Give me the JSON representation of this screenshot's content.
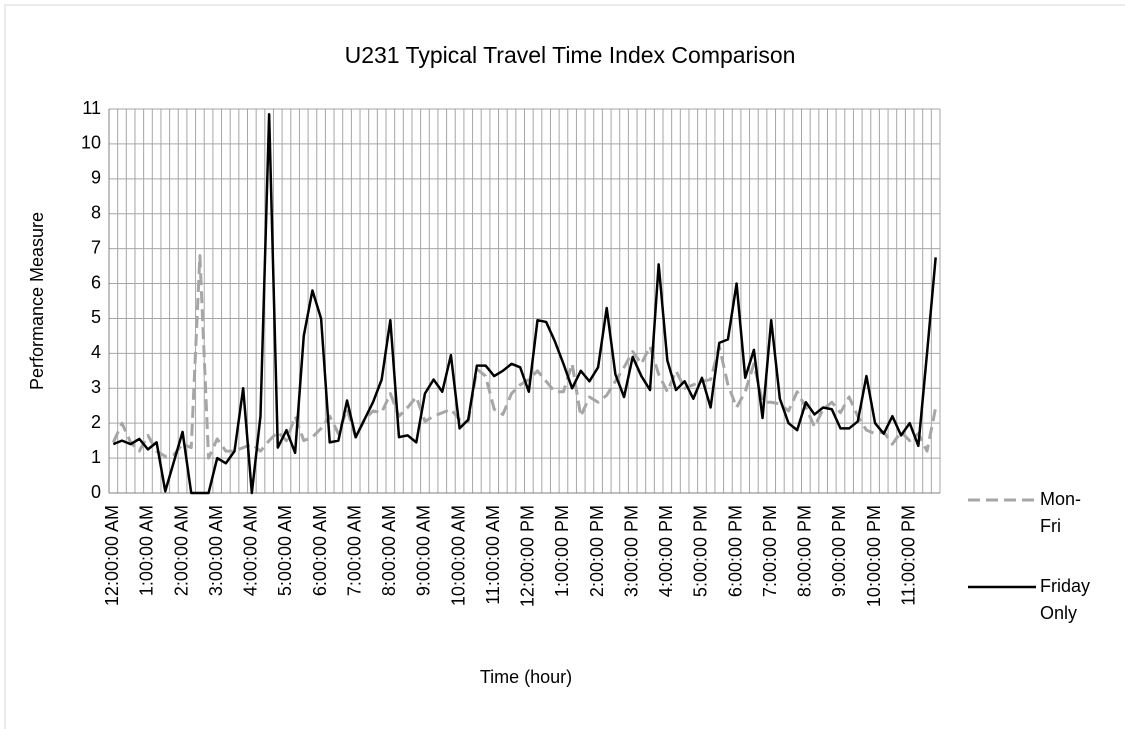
{
  "chart_data": {
    "type": "line",
    "title": "U231 Typical Travel Time Index Comparison",
    "x_label": "Time (hour)",
    "y_label": "Performance Measure",
    "categories": [
      "12:00:00 AM",
      null,
      null,
      null,
      "1:00:00 AM",
      null,
      null,
      null,
      "2:00:00 AM",
      null,
      null,
      null,
      "3:00:00 AM",
      null,
      null,
      null,
      "4:00:00 AM",
      null,
      null,
      null,
      "5:00:00 AM",
      null,
      null,
      null,
      "6:00:00 AM",
      null,
      null,
      null,
      "7:00:00 AM",
      null,
      null,
      null,
      "8:00:00 AM",
      null,
      null,
      null,
      "9:00:00 AM",
      null,
      null,
      null,
      "10:00:00 AM",
      null,
      null,
      null,
      "11:00:00 AM",
      null,
      null,
      null,
      "12:00:00 PM",
      null,
      null,
      null,
      "1:00:00 PM",
      null,
      null,
      null,
      "2:00:00 PM",
      null,
      null,
      null,
      "3:00:00 PM",
      null,
      null,
      null,
      "4:00:00 PM",
      null,
      null,
      null,
      "5:00:00 PM",
      null,
      null,
      null,
      "6:00:00 PM",
      null,
      null,
      null,
      "7:00:00 PM",
      null,
      null,
      null,
      "8:00:00 PM",
      null,
      null,
      null,
      "9:00:00 PM",
      null,
      null,
      null,
      "10:00:00 PM",
      null,
      null,
      null,
      "11:00:00 PM",
      null,
      null,
      null
    ],
    "series": [
      {
        "name": "Mon-Fri",
        "color": "#a6a6a6",
        "dash": true,
        "values": [
          1.45,
          2.0,
          1.45,
          1.2,
          1.65,
          1.2,
          1.05,
          1.1,
          1.4,
          1.3,
          6.8,
          1.0,
          1.55,
          1.2,
          1.2,
          1.3,
          1.4,
          1.2,
          1.5,
          1.75,
          1.5,
          2.2,
          1.5,
          1.6,
          1.85,
          2.2,
          1.7,
          2.4,
          1.6,
          2.1,
          2.35,
          2.3,
          2.85,
          2.2,
          2.45,
          2.75,
          2.05,
          2.2,
          2.3,
          2.4,
          2.1,
          2.05,
          3.55,
          3.35,
          2.4,
          2.25,
          2.85,
          3.1,
          3.25,
          3.5,
          3.2,
          2.9,
          2.9,
          3.7,
          2.2,
          2.75,
          2.6,
          2.8,
          3.2,
          3.6,
          4.05,
          3.7,
          4.2,
          3.4,
          2.9,
          3.5,
          3.0,
          3.1,
          3.2,
          3.25,
          4.2,
          3.1,
          2.45,
          2.9,
          3.7,
          2.6,
          2.6,
          2.55,
          2.35,
          2.9,
          2.45,
          1.9,
          2.4,
          2.6,
          2.3,
          2.75,
          2.2,
          1.8,
          1.7,
          1.75,
          1.4,
          1.75,
          1.5,
          1.7,
          1.2,
          2.45
        ]
      },
      {
        "name": "Friday Only",
        "color": "#000000",
        "dash": false,
        "values": [
          1.4,
          1.5,
          1.4,
          1.55,
          1.25,
          1.45,
          0.05,
          0.9,
          1.75,
          0,
          0,
          0,
          1.0,
          0.85,
          1.2,
          3.0,
          0,
          2.2,
          10.85,
          1.3,
          1.8,
          1.15,
          4.5,
          5.8,
          5.0,
          1.45,
          1.5,
          2.65,
          1.6,
          2.1,
          2.6,
          3.25,
          4.95,
          1.6,
          1.65,
          1.45,
          2.85,
          3.25,
          2.9,
          3.95,
          1.85,
          2.1,
          3.65,
          3.65,
          3.35,
          3.5,
          3.7,
          3.6,
          2.9,
          4.95,
          4.9,
          4.35,
          3.7,
          3.0,
          3.5,
          3.2,
          3.6,
          5.3,
          3.4,
          2.75,
          3.9,
          3.35,
          2.95,
          6.55,
          3.8,
          2.95,
          3.2,
          2.7,
          3.3,
          2.45,
          4.3,
          4.4,
          6.0,
          3.3,
          4.1,
          2.15,
          4.95,
          2.7,
          2.0,
          1.8,
          2.6,
          2.25,
          2.45,
          2.4,
          1.85,
          1.85,
          2.05,
          3.35,
          2.0,
          1.7,
          2.2,
          1.65,
          2.0,
          1.35,
          4.0,
          6.75
        ]
      }
    ],
    "ylim": [
      0,
      11
    ],
    "yticks": [
      0,
      1,
      2,
      3,
      4,
      5,
      6,
      7,
      8,
      9,
      10,
      11
    ],
    "grid": true,
    "legend": "right"
  }
}
